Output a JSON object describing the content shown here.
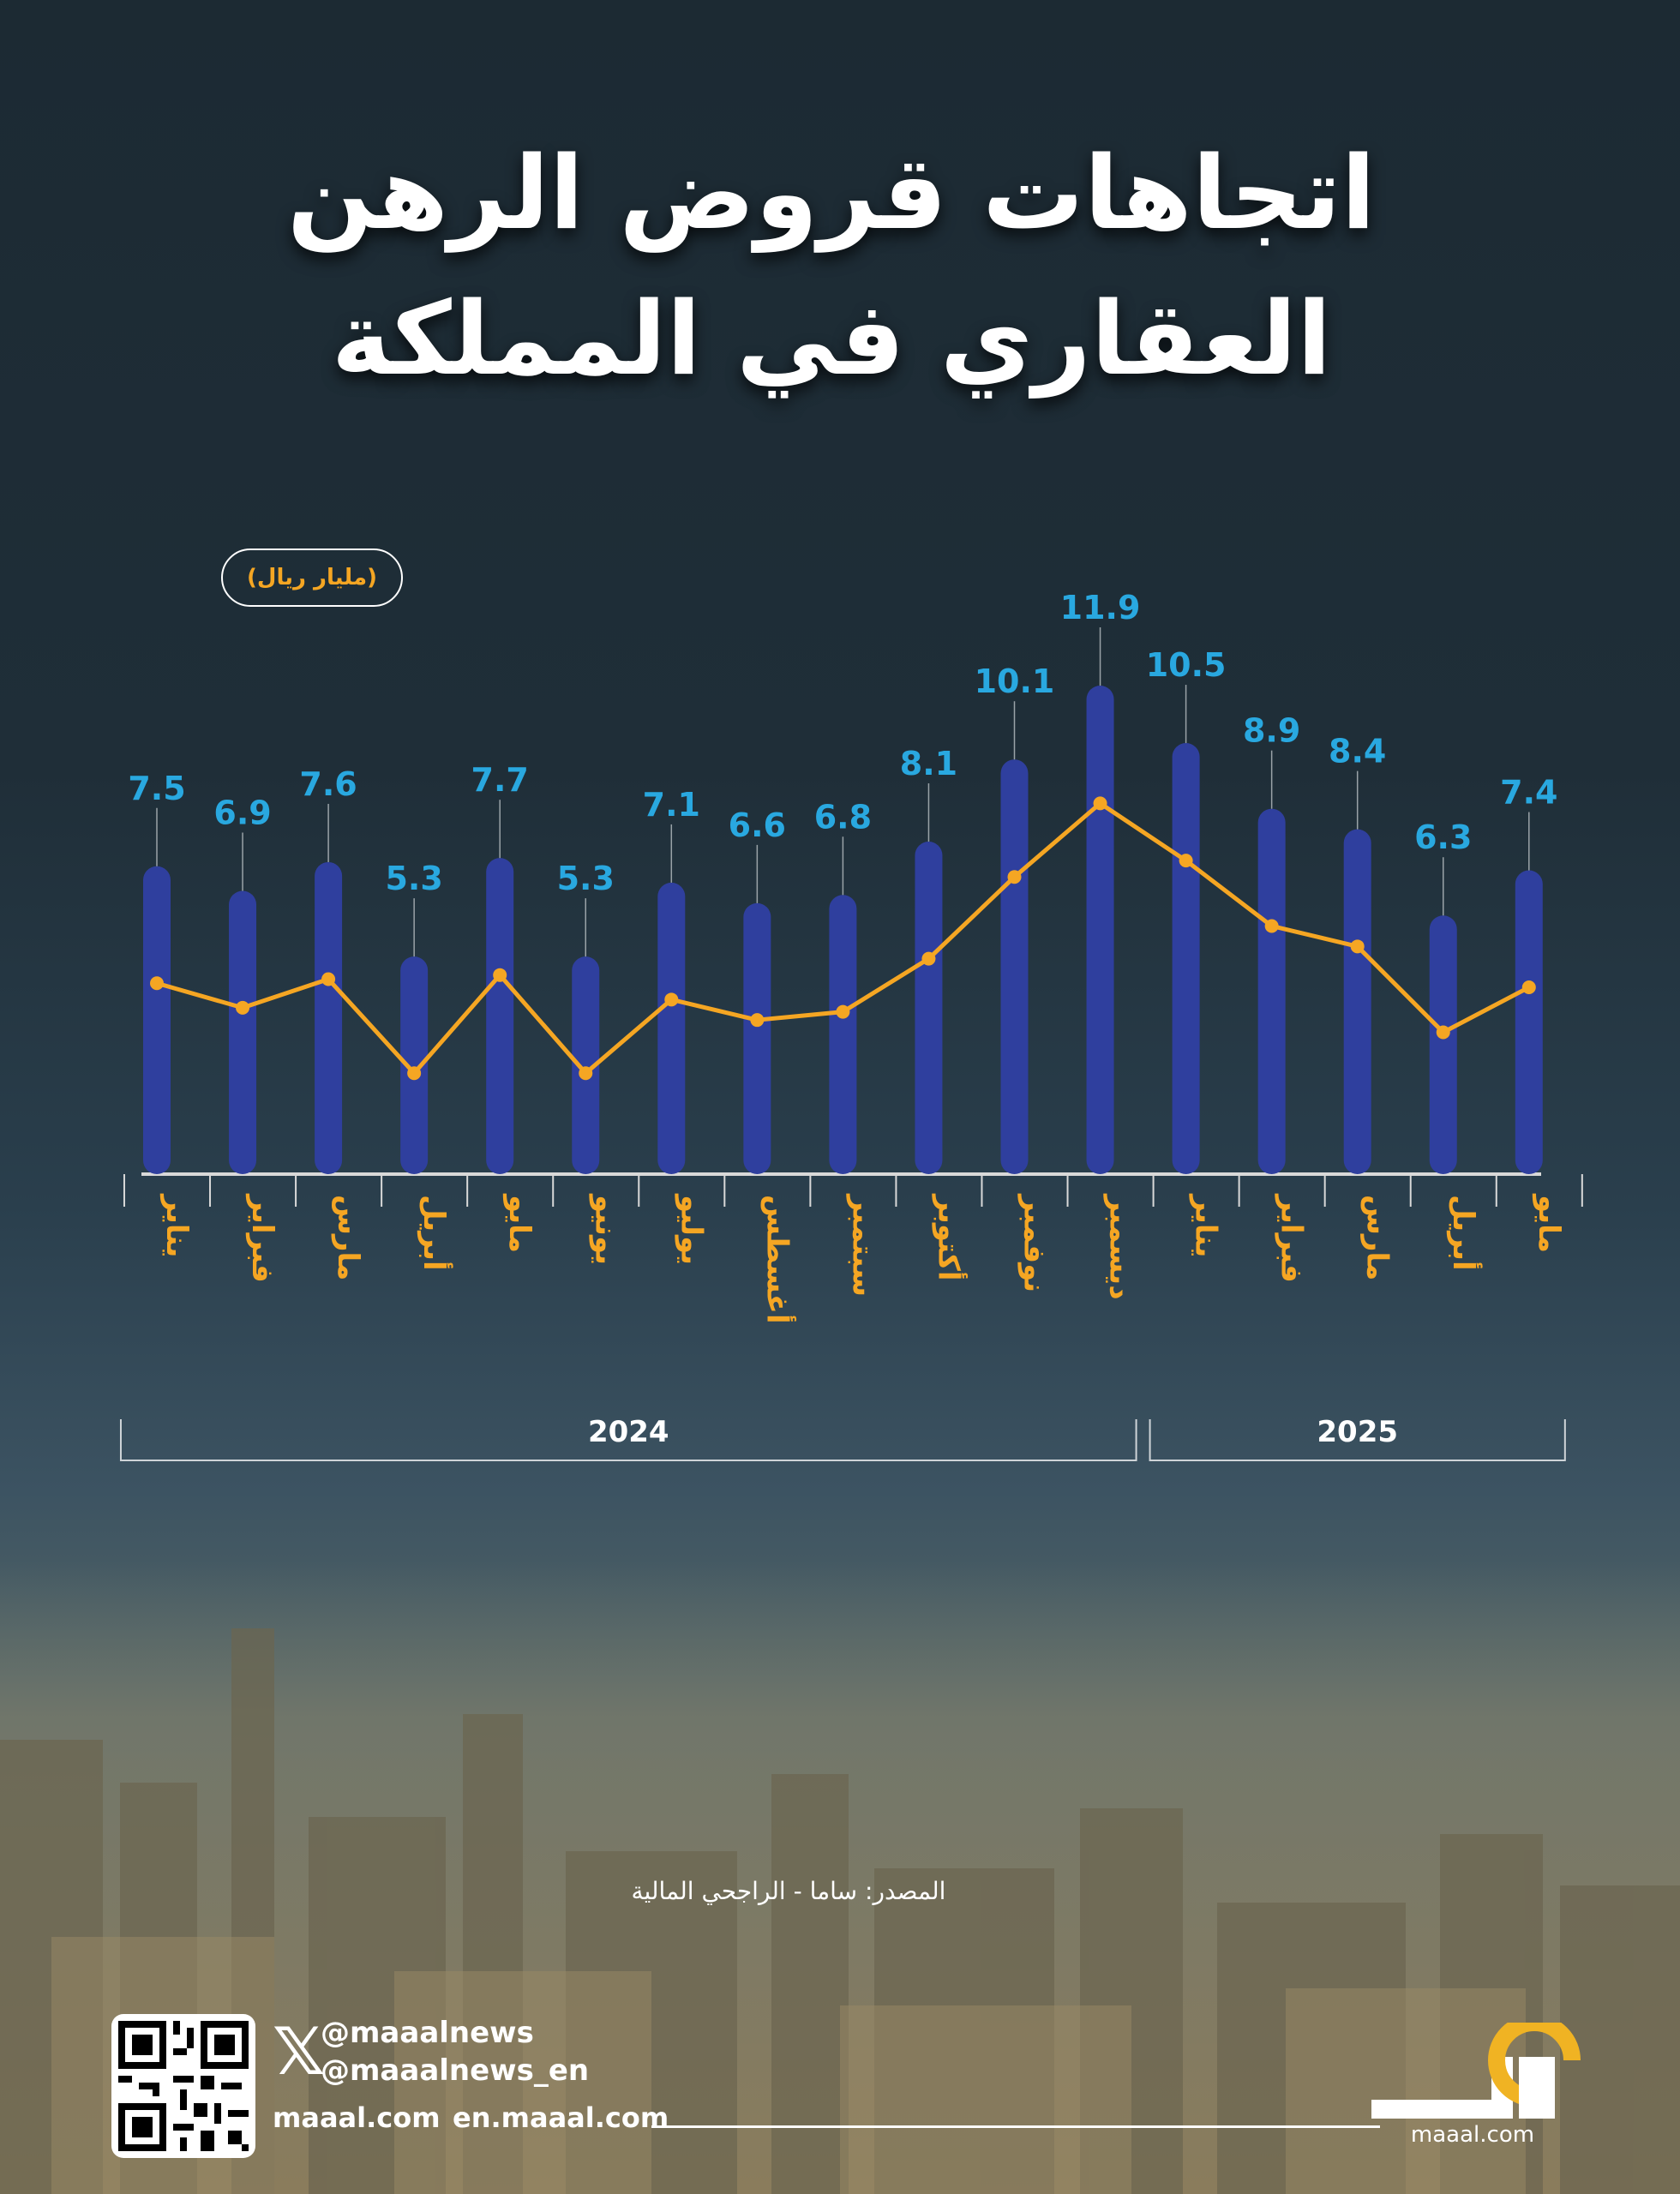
{
  "title_line1": "اتجاهات قروض الرهن",
  "title_line2": "العقاري في المملكة",
  "unit": "(مليار ريال)",
  "chart_data": {
    "type": "bar",
    "unit": "مليار ريال",
    "categories": [
      "يناير",
      "فبراير",
      "مارس",
      "أبريل",
      "مايو",
      "يونيو",
      "يوليو",
      "أغسطس",
      "سبتمبر",
      "أكتوبر",
      "نوفمبر",
      "ديسمبر",
      "يناير",
      "فبراير",
      "مارس",
      "أبريل",
      "مايو"
    ],
    "values": [
      7.5,
      6.9,
      7.6,
      5.3,
      7.7,
      5.3,
      7.1,
      6.6,
      6.8,
      8.1,
      10.1,
      11.9,
      10.5,
      8.9,
      8.4,
      6.3,
      7.4
    ],
    "line_overlay": "same values",
    "year_groups": [
      {
        "label": "2024",
        "from": 0,
        "to": 11
      },
      {
        "label": "2025",
        "from": 12,
        "to": 16
      }
    ],
    "colors": {
      "bar": "#2f3f9e",
      "line": "#f5a623",
      "value_label": "#29a8e0",
      "month_label": "#f5a623"
    }
  },
  "source": "المصدر: ساما - الراجحي المالية",
  "social": {
    "handle_ar": "@maaalnews",
    "handle_en": "@maaalnews_en",
    "site": "maaal.com",
    "site_en": "en.maaal.com",
    "x_icon": "x-logo-icon"
  },
  "logo": {
    "domain": "maaal.com",
    "accent": "#f0b323"
  }
}
